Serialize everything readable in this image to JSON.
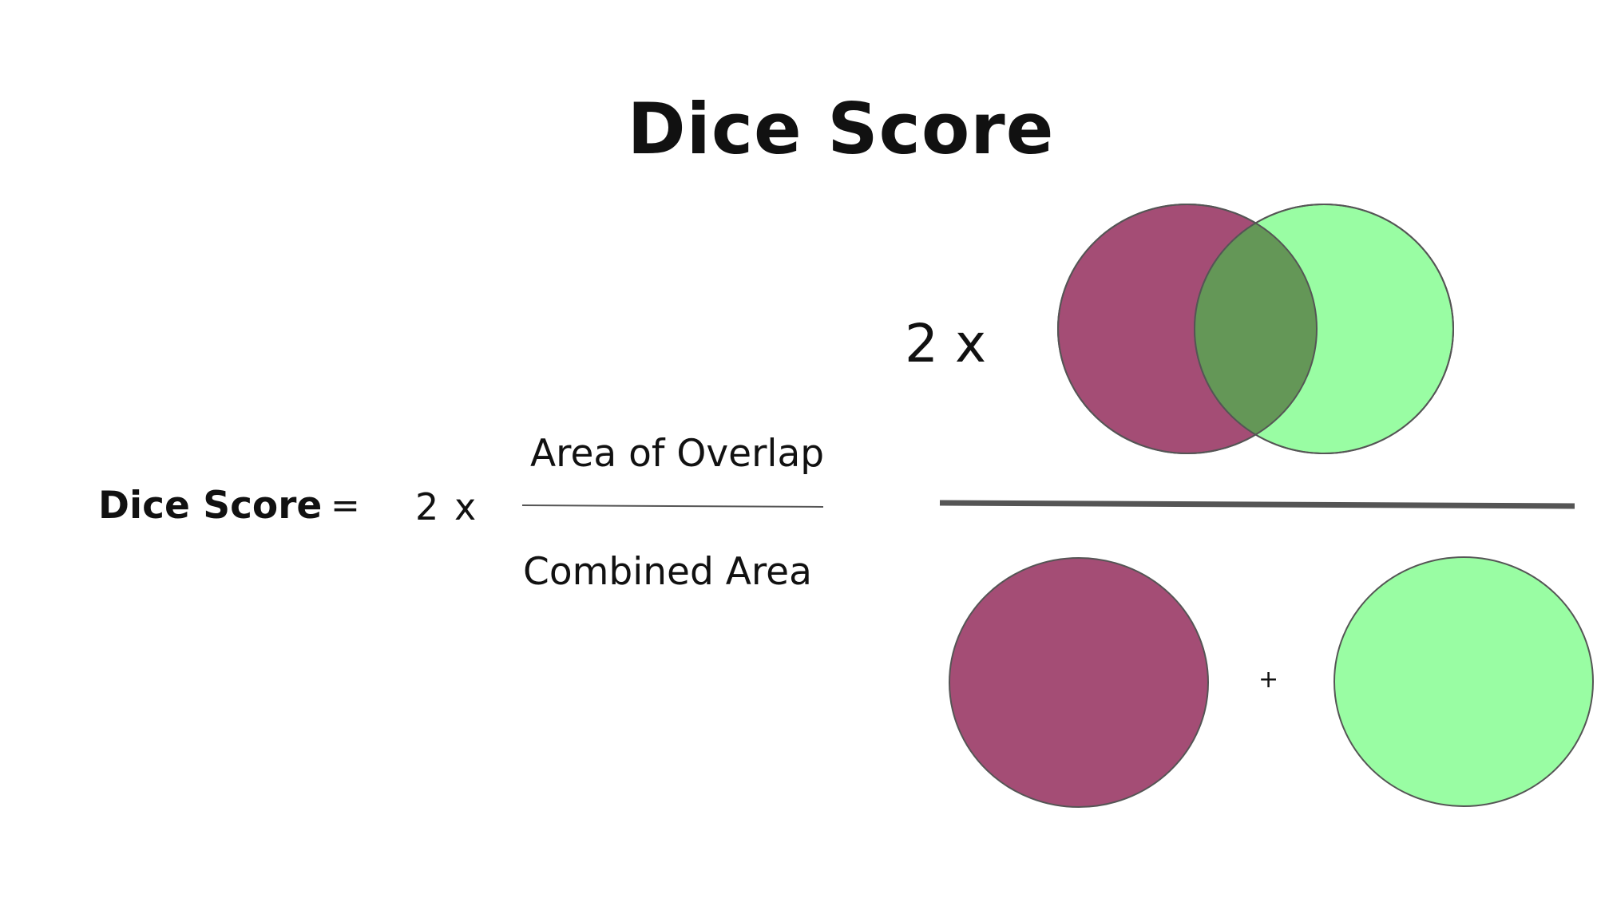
{
  "title": "Dice Score",
  "formula": {
    "lhs_label": "Dice Score",
    "equals": "=",
    "coefficient": "2",
    "times": "x",
    "numerator": "Area of Overlap",
    "denominator": "Combined Area"
  },
  "visual_formula": {
    "coefficient_label": "2 x",
    "plus": "+"
  },
  "colors": {
    "set_a": "#a44d75",
    "set_b": "#99fda3",
    "overlap": "#649757",
    "outline": "#555555",
    "fraction_bar": "#555555"
  }
}
